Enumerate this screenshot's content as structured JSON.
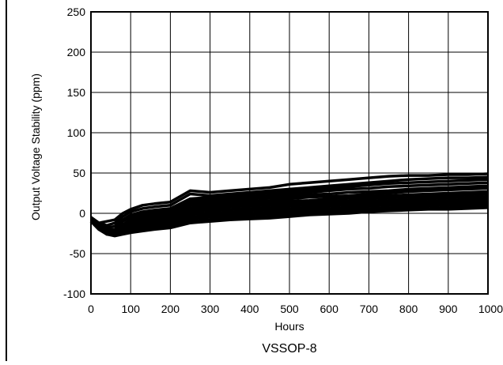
{
  "chart_data": {
    "type": "line",
    "title": "",
    "caption": "VSSOP-8",
    "xlabel": "Hours",
    "ylabel": "Output Voltage Stability (ppm)",
    "xlim": [
      0,
      1000
    ],
    "ylim": [
      -100,
      250
    ],
    "xticks": [
      0,
      100,
      200,
      300,
      400,
      500,
      600,
      700,
      800,
      900,
      1000
    ],
    "yticks": [
      -100,
      -50,
      0,
      50,
      100,
      150,
      200,
      250
    ],
    "grid": true,
    "line_color": "#000000",
    "x": [
      0,
      20,
      40,
      60,
      80,
      100,
      130,
      160,
      200,
      250,
      300,
      350,
      400,
      450,
      500,
      550,
      600,
      650,
      700,
      750,
      800,
      850,
      900,
      950,
      1000
    ],
    "series": [
      {
        "values": [
          -5,
          -12,
          -10,
          -8,
          0,
          5,
          10,
          12,
          14,
          28,
          26,
          28,
          30,
          32,
          36,
          38,
          40,
          42,
          44,
          46,
          47,
          47,
          48,
          48,
          49
        ]
      },
      {
        "values": [
          -5,
          -12,
          -15,
          -12,
          -4,
          2,
          6,
          8,
          10,
          24,
          22,
          24,
          26,
          28,
          30,
          32,
          34,
          36,
          38,
          40,
          42,
          43,
          44,
          44,
          45
        ]
      },
      {
        "values": [
          -6,
          -13,
          -18,
          -16,
          -8,
          -2,
          2,
          4,
          6,
          18,
          20,
          22,
          24,
          25,
          27,
          29,
          31,
          33,
          35,
          37,
          38,
          39,
          40,
          41,
          42
        ]
      },
      {
        "values": [
          -6,
          -14,
          -20,
          -20,
          -10,
          -5,
          0,
          2,
          4,
          15,
          17,
          19,
          21,
          22,
          24,
          26,
          28,
          30,
          31,
          33,
          34,
          35,
          36,
          37,
          38
        ]
      },
      {
        "values": [
          -7,
          -15,
          -22,
          -22,
          -14,
          -8,
          -3,
          0,
          2,
          12,
          14,
          16,
          18,
          19,
          21,
          23,
          24,
          26,
          27,
          28,
          30,
          31,
          32,
          33,
          34
        ]
      },
      {
        "values": [
          -7,
          -15,
          -22,
          -24,
          -16,
          -10,
          -5,
          -2,
          0,
          10,
          11,
          13,
          15,
          16,
          18,
          20,
          21,
          22,
          24,
          25,
          27,
          28,
          29,
          30,
          31
        ]
      },
      {
        "values": [
          -8,
          -16,
          -24,
          -24,
          -18,
          -12,
          -7,
          -4,
          -2,
          7,
          8,
          10,
          12,
          13,
          15,
          16,
          18,
          19,
          21,
          22,
          23,
          24,
          25,
          26,
          27
        ]
      },
      {
        "values": [
          -8,
          -16,
          -24,
          -25,
          -18,
          -14,
          -9,
          -6,
          -4,
          4,
          6,
          8,
          9,
          10,
          12,
          13,
          15,
          16,
          18,
          19,
          20,
          21,
          22,
          23,
          24
        ]
      },
      {
        "values": [
          -9,
          -17,
          -25,
          -26,
          -20,
          -15,
          -11,
          -8,
          -6,
          2,
          3,
          5,
          6,
          7,
          9,
          10,
          12,
          13,
          15,
          16,
          17,
          18,
          19,
          20,
          21
        ]
      },
      {
        "values": [
          -9,
          -18,
          -26,
          -26,
          -22,
          -17,
          -13,
          -10,
          -8,
          -1,
          0,
          2,
          3,
          4,
          6,
          7,
          9,
          10,
          12,
          13,
          14,
          15,
          16,
          17,
          18
        ]
      },
      {
        "values": [
          -10,
          -18,
          -26,
          -27,
          -22,
          -18,
          -15,
          -12,
          -10,
          -4,
          -3,
          -1,
          0,
          1,
          3,
          4,
          6,
          7,
          9,
          10,
          11,
          12,
          13,
          14,
          15
        ]
      },
      {
        "values": [
          -10,
          -19,
          -26,
          -27,
          -23,
          -20,
          -17,
          -14,
          -12,
          -6,
          -5,
          -4,
          -2,
          -1,
          0,
          2,
          3,
          4,
          6,
          7,
          8,
          9,
          10,
          11,
          12
        ]
      },
      {
        "values": [
          -10,
          -20,
          -26,
          -27,
          -24,
          -22,
          -19,
          -17,
          -15,
          -9,
          -8,
          -6,
          -5,
          -4,
          -2,
          0,
          1,
          2,
          4,
          5,
          6,
          6,
          7,
          8,
          9
        ]
      },
      {
        "values": [
          -10,
          -20,
          -26,
          -28,
          -26,
          -24,
          -22,
          -20,
          -18,
          -12,
          -10,
          -8,
          -7,
          -6,
          -4,
          -2,
          -1,
          0,
          2,
          3,
          4,
          5,
          5,
          6,
          7
        ]
      }
    ]
  }
}
